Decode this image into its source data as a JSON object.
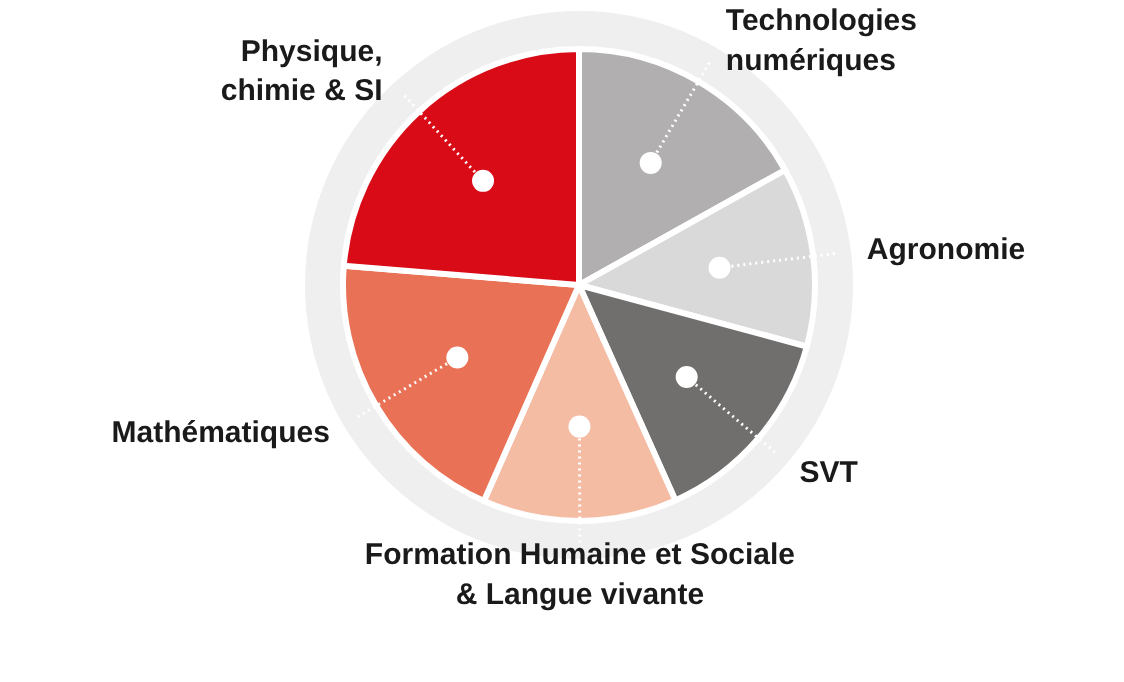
{
  "chart_data": {
    "type": "pie",
    "categories": [
      "Technologies\nnumériques",
      "Agronomie",
      "SVT",
      "Formation Humaine et Sociale\n& Langue vivante",
      "Mathématiques",
      "Physique,\nchimie & SI"
    ],
    "values": [
      16.9,
      12.3,
      14.1,
      13.3,
      19.7,
      23.7
    ],
    "colors": [
      "#b1afaf",
      "#d9d9d9",
      "#706f6e",
      "#f5bca4",
      "#e97155",
      "#d90b17"
    ]
  }
}
